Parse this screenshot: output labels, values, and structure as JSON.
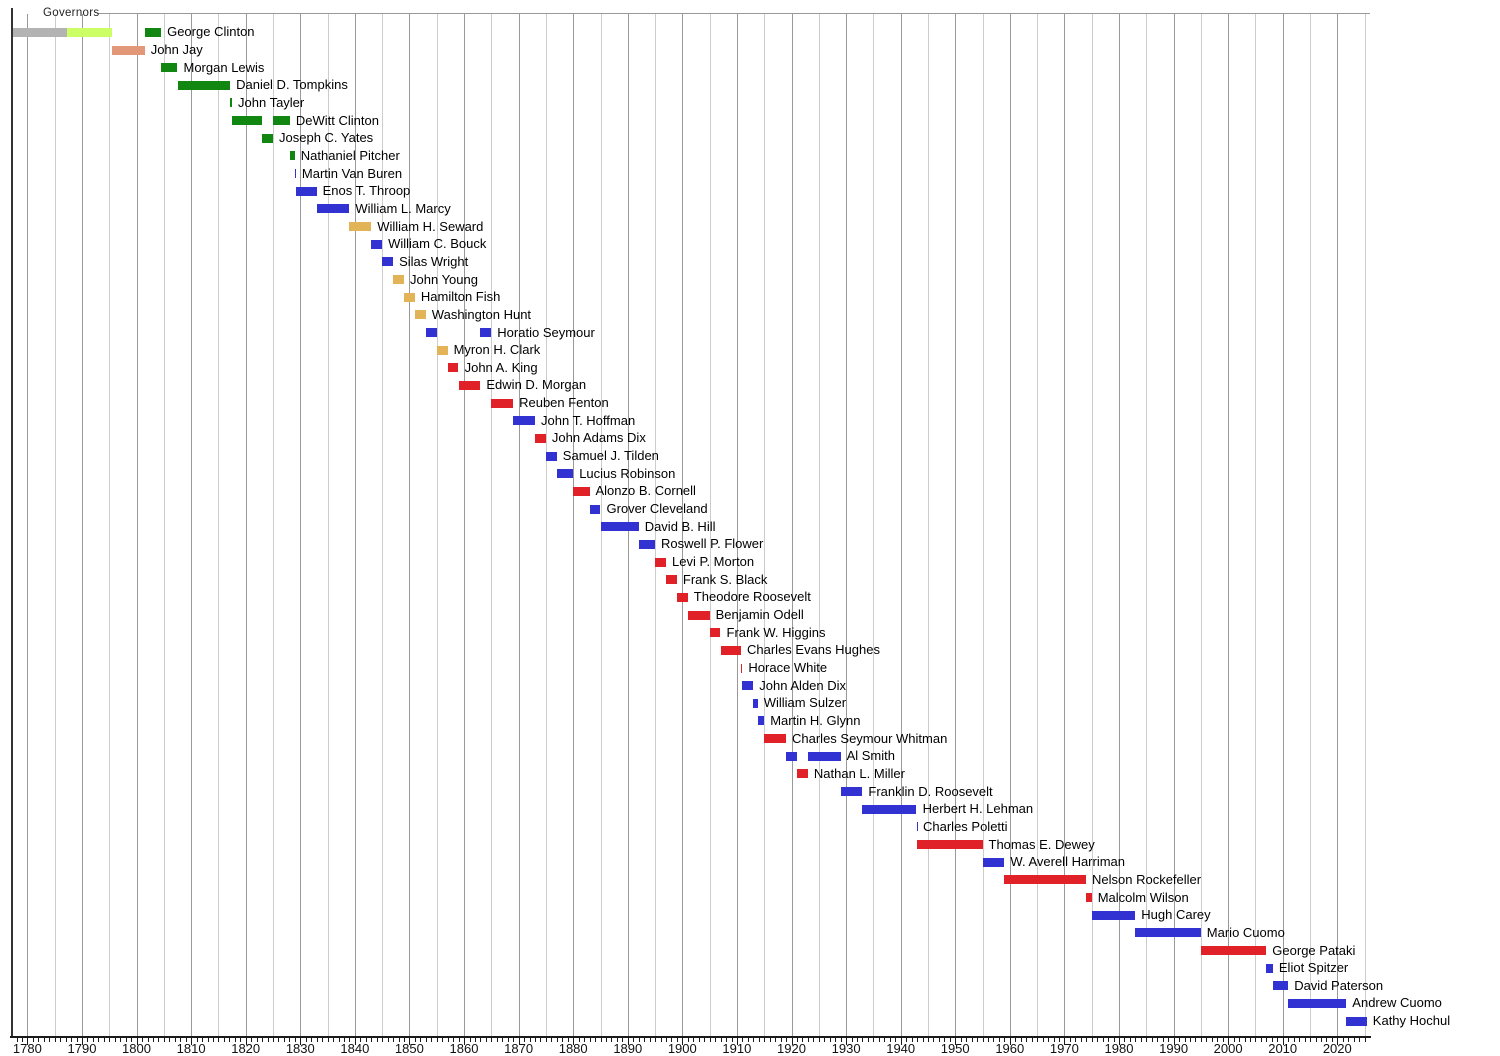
{
  "chart_data": {
    "type": "timeline",
    "title": "Governors",
    "x_axis": {
      "min_year": 1777,
      "max_year": 2026,
      "gridline_interval_years": 5,
      "major_gridline_interval_years": 10,
      "minor_tick_interval_years": 1,
      "tick_labels": [
        "1780",
        "1790",
        "1800",
        "1810",
        "1820",
        "1830",
        "1840",
        "1850",
        "1860",
        "1870",
        "1880",
        "1890",
        "1900",
        "1910",
        "1920",
        "1930",
        "1940",
        "1950",
        "1960",
        "1970",
        "1980",
        "1990",
        "2000",
        "2010",
        "2020"
      ]
    },
    "party_colors": {
      "none": "#b3b3b3",
      "anti_federalist": "#ccff66",
      "federalist": "#e29878",
      "democratic_republican": "#118611",
      "democratic": "#3232d2",
      "whig": "#e2b457",
      "republican": "#e02228"
    },
    "governors": [
      {
        "name": "George Clinton",
        "bars": [
          {
            "start": 1777.4,
            "end": 1787.3,
            "party": "none"
          },
          {
            "start": 1787.3,
            "end": 1795.5,
            "party": "anti_federalist"
          },
          {
            "start": 1801.5,
            "end": 1804.5,
            "party": "democratic_republican"
          }
        ]
      },
      {
        "name": "John Jay",
        "bars": [
          {
            "start": 1795.5,
            "end": 1801.5,
            "party": "federalist"
          }
        ]
      },
      {
        "name": "Morgan Lewis",
        "bars": [
          {
            "start": 1804.5,
            "end": 1807.5,
            "party": "democratic_republican"
          }
        ]
      },
      {
        "name": "Daniel D. Tompkins",
        "bars": [
          {
            "start": 1807.5,
            "end": 1817.15,
            "party": "democratic_republican"
          }
        ]
      },
      {
        "name": "John Tayler",
        "bars": [
          {
            "start": 1817.15,
            "end": 1817.5,
            "party": "democratic_republican"
          }
        ]
      },
      {
        "name": "DeWitt Clinton",
        "bars": [
          {
            "start": 1817.5,
            "end": 1823.0,
            "party": "democratic_republican"
          },
          {
            "start": 1825.0,
            "end": 1828.1,
            "party": "democratic_republican"
          }
        ]
      },
      {
        "name": "Joseph C. Yates",
        "bars": [
          {
            "start": 1823.0,
            "end": 1825.0,
            "party": "democratic_republican"
          }
        ]
      },
      {
        "name": "Nathaniel Pitcher",
        "bars": [
          {
            "start": 1828.1,
            "end": 1829.0,
            "party": "democratic_republican"
          }
        ]
      },
      {
        "name": "Martin Van Buren",
        "bars": [
          {
            "start": 1829.0,
            "end": 1829.2,
            "party": "democratic"
          }
        ]
      },
      {
        "name": "Enos T. Throop",
        "bars": [
          {
            "start": 1829.2,
            "end": 1833.0,
            "party": "democratic"
          }
        ]
      },
      {
        "name": "William L. Marcy",
        "bars": [
          {
            "start": 1833.0,
            "end": 1839.0,
            "party": "democratic"
          }
        ]
      },
      {
        "name": "William H. Seward",
        "bars": [
          {
            "start": 1839.0,
            "end": 1843.0,
            "party": "whig"
          }
        ]
      },
      {
        "name": "William C. Bouck",
        "bars": [
          {
            "start": 1843.0,
            "end": 1845.0,
            "party": "democratic"
          }
        ]
      },
      {
        "name": "Silas Wright",
        "bars": [
          {
            "start": 1845.0,
            "end": 1847.0,
            "party": "democratic"
          }
        ]
      },
      {
        "name": "John Young",
        "bars": [
          {
            "start": 1847.0,
            "end": 1849.0,
            "party": "whig"
          }
        ]
      },
      {
        "name": "Hamilton Fish",
        "bars": [
          {
            "start": 1849.0,
            "end": 1851.0,
            "party": "whig"
          }
        ]
      },
      {
        "name": "Washington Hunt",
        "bars": [
          {
            "start": 1851.0,
            "end": 1853.0,
            "party": "whig"
          }
        ]
      },
      {
        "name": "Horatio Seymour",
        "bars": [
          {
            "start": 1853.0,
            "end": 1855.0,
            "party": "democratic"
          },
          {
            "start": 1863.0,
            "end": 1865.0,
            "party": "democratic"
          }
        ]
      },
      {
        "name": "Myron H. Clark",
        "bars": [
          {
            "start": 1855.0,
            "end": 1857.0,
            "party": "whig"
          }
        ]
      },
      {
        "name": "John A. King",
        "bars": [
          {
            "start": 1857.0,
            "end": 1859.0,
            "party": "republican"
          }
        ]
      },
      {
        "name": "Edwin D. Morgan",
        "bars": [
          {
            "start": 1859.0,
            "end": 1863.0,
            "party": "republican"
          }
        ]
      },
      {
        "name": "Reuben Fenton",
        "bars": [
          {
            "start": 1865.0,
            "end": 1869.0,
            "party": "republican"
          }
        ]
      },
      {
        "name": "John T. Hoffman",
        "bars": [
          {
            "start": 1869.0,
            "end": 1873.0,
            "party": "democratic"
          }
        ]
      },
      {
        "name": "John Adams Dix",
        "bars": [
          {
            "start": 1873.0,
            "end": 1875.0,
            "party": "republican"
          }
        ]
      },
      {
        "name": "Samuel J. Tilden",
        "bars": [
          {
            "start": 1875.0,
            "end": 1877.0,
            "party": "democratic"
          }
        ]
      },
      {
        "name": "Lucius Robinson",
        "bars": [
          {
            "start": 1877.0,
            "end": 1880.0,
            "party": "democratic"
          }
        ]
      },
      {
        "name": "Alonzo B. Cornell",
        "bars": [
          {
            "start": 1880.0,
            "end": 1883.0,
            "party": "republican"
          }
        ]
      },
      {
        "name": "Grover Cleveland",
        "bars": [
          {
            "start": 1883.0,
            "end": 1885.0,
            "party": "democratic"
          }
        ]
      },
      {
        "name": "David B. Hill",
        "bars": [
          {
            "start": 1885.0,
            "end": 1892.0,
            "party": "democratic"
          }
        ]
      },
      {
        "name": "Roswell P. Flower",
        "bars": [
          {
            "start": 1892.0,
            "end": 1895.0,
            "party": "democratic"
          }
        ]
      },
      {
        "name": "Levi P. Morton",
        "bars": [
          {
            "start": 1895.0,
            "end": 1897.0,
            "party": "republican"
          }
        ]
      },
      {
        "name": "Frank S. Black",
        "bars": [
          {
            "start": 1897.0,
            "end": 1899.0,
            "party": "republican"
          }
        ]
      },
      {
        "name": "Theodore Roosevelt",
        "bars": [
          {
            "start": 1899.0,
            "end": 1901.0,
            "party": "republican"
          }
        ]
      },
      {
        "name": "Benjamin Odell",
        "bars": [
          {
            "start": 1901.0,
            "end": 1905.0,
            "party": "republican"
          }
        ]
      },
      {
        "name": "Frank W. Higgins",
        "bars": [
          {
            "start": 1905.0,
            "end": 1907.0,
            "party": "republican"
          }
        ]
      },
      {
        "name": "Charles Evans Hughes",
        "bars": [
          {
            "start": 1907.0,
            "end": 1910.75,
            "party": "republican"
          }
        ]
      },
      {
        "name": "Horace White",
        "bars": [
          {
            "start": 1910.75,
            "end": 1911.0,
            "party": "republican"
          }
        ]
      },
      {
        "name": "John Alden Dix",
        "bars": [
          {
            "start": 1911.0,
            "end": 1913.0,
            "party": "democratic"
          }
        ]
      },
      {
        "name": "William Sulzer",
        "bars": [
          {
            "start": 1913.0,
            "end": 1913.8,
            "party": "democratic"
          }
        ]
      },
      {
        "name": "Martin H. Glynn",
        "bars": [
          {
            "start": 1913.8,
            "end": 1915.0,
            "party": "democratic"
          }
        ]
      },
      {
        "name": "Charles Seymour Whitman",
        "bars": [
          {
            "start": 1915.0,
            "end": 1919.0,
            "party": "republican"
          }
        ]
      },
      {
        "name": "Al Smith",
        "bars": [
          {
            "start": 1919.0,
            "end": 1921.0,
            "party": "democratic"
          },
          {
            "start": 1923.0,
            "end": 1929.0,
            "party": "democratic"
          }
        ]
      },
      {
        "name": "Nathan L. Miller",
        "bars": [
          {
            "start": 1921.0,
            "end": 1923.0,
            "party": "republican"
          }
        ]
      },
      {
        "name": "Franklin D. Roosevelt",
        "bars": [
          {
            "start": 1929.0,
            "end": 1933.0,
            "party": "democratic"
          }
        ]
      },
      {
        "name": "Herbert H. Lehman",
        "bars": [
          {
            "start": 1933.0,
            "end": 1942.92,
            "party": "democratic"
          }
        ]
      },
      {
        "name": "Charles Poletti",
        "bars": [
          {
            "start": 1942.92,
            "end": 1943.0,
            "party": "democratic"
          }
        ]
      },
      {
        "name": "Thomas E. Dewey",
        "bars": [
          {
            "start": 1943.0,
            "end": 1955.0,
            "party": "republican"
          }
        ]
      },
      {
        "name": "W. Averell Harriman",
        "bars": [
          {
            "start": 1955.0,
            "end": 1959.0,
            "party": "democratic"
          }
        ]
      },
      {
        "name": "Nelson Rockefeller",
        "bars": [
          {
            "start": 1959.0,
            "end": 1973.96,
            "party": "republican"
          }
        ]
      },
      {
        "name": "Malcolm Wilson",
        "bars": [
          {
            "start": 1973.96,
            "end": 1975.0,
            "party": "republican"
          }
        ]
      },
      {
        "name": "Hugh Carey",
        "bars": [
          {
            "start": 1975.0,
            "end": 1983.0,
            "party": "democratic"
          }
        ]
      },
      {
        "name": "Mario Cuomo",
        "bars": [
          {
            "start": 1983.0,
            "end": 1995.0,
            "party": "democratic"
          }
        ]
      },
      {
        "name": "George Pataki",
        "bars": [
          {
            "start": 1995.0,
            "end": 2007.0,
            "party": "republican"
          }
        ]
      },
      {
        "name": "Eliot Spitzer",
        "bars": [
          {
            "start": 2007.0,
            "end": 2008.2,
            "party": "democratic"
          }
        ]
      },
      {
        "name": "David Paterson",
        "bars": [
          {
            "start": 2008.2,
            "end": 2011.0,
            "party": "democratic"
          }
        ]
      },
      {
        "name": "Andrew Cuomo",
        "bars": [
          {
            "start": 2011.0,
            "end": 2021.65,
            "party": "democratic"
          }
        ]
      },
      {
        "name": "Kathy Hochul",
        "bars": [
          {
            "start": 2021.65,
            "end": 2025.4,
            "party": "democratic"
          }
        ]
      }
    ]
  }
}
